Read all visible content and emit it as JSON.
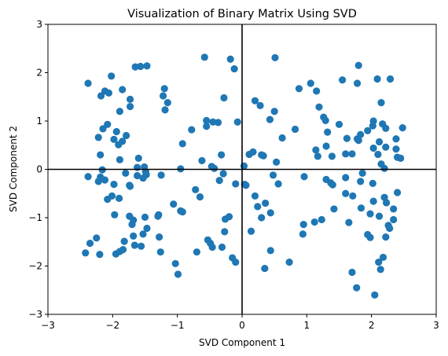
{
  "chart_data": {
    "type": "scatter",
    "title": "Visualization of Binary Matrix Using SVD",
    "xlabel": "SVD Component 1",
    "ylabel": "SVD Component 2",
    "xlim": [
      -3,
      3
    ],
    "ylim": [
      -3,
      3
    ],
    "xticks": [
      "−3",
      "−2",
      "−1",
      "0",
      "1",
      "2",
      "3"
    ],
    "yticks": [
      "−3",
      "−2",
      "−1",
      "0",
      "1",
      "2",
      "3"
    ],
    "grid": false,
    "reference_lines": [
      {
        "axis": "x",
        "value": 0
      },
      {
        "axis": "y",
        "value": 0
      }
    ],
    "colors": {
      "points": "#1f77b4",
      "reference_lines": "#000000"
    },
    "series": [
      {
        "points": [
          [
            -2.38,
            1.78
          ],
          [
            -2.02,
            1.93
          ],
          [
            -1.85,
            1.65
          ],
          [
            -1.65,
            2.12
          ],
          [
            -1.57,
            2.13
          ],
          [
            -1.47,
            2.14
          ],
          [
            -2.18,
            1.52
          ],
          [
            -2.12,
            1.62
          ],
          [
            -2.06,
            1.58
          ],
          [
            -1.73,
            1.45
          ],
          [
            -1.73,
            1.3
          ],
          [
            -1.89,
            1.2
          ],
          [
            -1.2,
            1.67
          ],
          [
            -1.22,
            1.52
          ],
          [
            -1.15,
            1.38
          ],
          [
            -1.19,
            1.23
          ],
          [
            -0.58,
            2.32
          ],
          [
            -0.18,
            2.28
          ],
          [
            -0.12,
            2.08
          ],
          [
            0.51,
            2.31
          ],
          [
            -0.55,
            1.01
          ],
          [
            -0.55,
            0.89
          ],
          [
            -0.45,
            0.98
          ],
          [
            -0.37,
            0.97
          ],
          [
            -0.28,
            1.48
          ],
          [
            -0.07,
            0.98
          ],
          [
            0.2,
            1.42
          ],
          [
            0.28,
            1.32
          ],
          [
            0.43,
            1.03
          ],
          [
            0.5,
            1.2
          ],
          [
            0.62,
            0.65
          ],
          [
            0.88,
            1.67
          ],
          [
            1.06,
            1.78
          ],
          [
            1.15,
            1.62
          ],
          [
            1.19,
            1.29
          ],
          [
            1.26,
            1.08
          ],
          [
            1.29,
            1.01
          ],
          [
            1.55,
            1.85
          ],
          [
            1.78,
            1.78
          ],
          [
            1.8,
            2.15
          ],
          [
            1.3,
            0.48
          ],
          [
            1.32,
            0.77
          ],
          [
            1.5,
            0.93
          ],
          [
            1.6,
            0.32
          ],
          [
            1.7,
            0.32
          ],
          [
            1.78,
            0.63
          ],
          [
            1.83,
            0.72
          ],
          [
            1.94,
            0.8
          ],
          [
            2.03,
            1.0
          ],
          [
            2.09,
            1.87
          ],
          [
            2.15,
            1.38
          ],
          [
            2.17,
            0.94
          ],
          [
            2.22,
            0.85
          ],
          [
            2.29,
            1.87
          ],
          [
            2.38,
            0.63
          ],
          [
            2.38,
            0.42
          ],
          [
            2.4,
            0.25
          ],
          [
            2.45,
            0.23
          ],
          [
            2.48,
            0.86
          ],
          [
            2.2,
            0.02
          ],
          [
            -2.22,
            0.66
          ],
          [
            -2.15,
            0.84
          ],
          [
            -2.08,
            0.93
          ],
          [
            -1.98,
            0.62
          ],
          [
            -1.94,
            0.78
          ],
          [
            -1.91,
            0.51
          ],
          [
            -1.85,
            0.58
          ],
          [
            -1.79,
            0.7
          ],
          [
            -1.6,
            0.23
          ],
          [
            -1.62,
            0.04
          ],
          [
            -1.51,
            0.05
          ],
          [
            -1.89,
            0.2
          ],
          [
            -2.19,
            0.3
          ],
          [
            -0.92,
            0.53
          ],
          [
            -0.78,
            0.82
          ],
          [
            -0.62,
            0.18
          ],
          [
            -0.47,
            0.06
          ],
          [
            -0.43,
            0.02
          ],
          [
            -0.32,
            0.3
          ],
          [
            0.03,
            0.07
          ],
          [
            0.11,
            0.31
          ],
          [
            0.17,
            0.36
          ],
          [
            0.3,
            0.3
          ],
          [
            0.33,
            0.28
          ],
          [
            0.53,
            0.15
          ],
          [
            0.82,
            0.83
          ],
          [
            1.14,
            0.4
          ],
          [
            1.17,
            0.27
          ],
          [
            1.39,
            0.27
          ],
          [
            1.62,
            0.64
          ],
          [
            1.8,
            0.6
          ],
          [
            2.03,
            0.44
          ],
          [
            2.1,
            0.31
          ],
          [
            2.12,
            0.57
          ],
          [
            2.02,
            0.9
          ],
          [
            2.22,
            0.46
          ],
          [
            2.15,
            0.11
          ],
          [
            -2.38,
            -0.15
          ],
          [
            -2.22,
            -0.25
          ],
          [
            -2.16,
            -0.01
          ],
          [
            -2.12,
            -0.22
          ],
          [
            -2.08,
            -0.62
          ],
          [
            -2.01,
            -0.55
          ],
          [
            -1.98,
            -0.31
          ],
          [
            -1.9,
            -0.6
          ],
          [
            -1.8,
            -0.08
          ],
          [
            -1.73,
            -0.35
          ],
          [
            -1.74,
            -0.33
          ],
          [
            -1.62,
            -0.13
          ],
          [
            -1.53,
            -0.18
          ],
          [
            -1.48,
            -0.11
          ],
          [
            -1.49,
            -0.05
          ],
          [
            -1.25,
            -0.12
          ],
          [
            -0.95,
            0.01
          ],
          [
            -0.72,
            -0.42
          ],
          [
            -0.35,
            -0.23
          ],
          [
            -0.29,
            -0.09
          ],
          [
            -0.1,
            -0.3
          ],
          [
            0.04,
            -0.31
          ],
          [
            0.06,
            -0.33
          ],
          [
            0.2,
            -0.55
          ],
          [
            0.36,
            -0.7
          ],
          [
            0.44,
            -0.9
          ],
          [
            0.48,
            -0.12
          ],
          [
            0.56,
            -0.3
          ],
          [
            0.96,
            -0.15
          ],
          [
            1.3,
            -0.21
          ],
          [
            1.37,
            -0.28
          ],
          [
            1.4,
            -0.32
          ],
          [
            1.42,
            -0.82
          ],
          [
            1.6,
            -0.17
          ],
          [
            1.71,
            -0.55
          ],
          [
            1.83,
            -0.25
          ],
          [
            1.86,
            -0.08
          ],
          [
            2.02,
            -0.29
          ],
          [
            2.03,
            -0.66
          ],
          [
            2.2,
            -0.58
          ],
          [
            2.34,
            -0.82
          ],
          [
            2.4,
            -0.48
          ],
          [
            -2.19,
            -0.16
          ],
          [
            -1.97,
            -0.94
          ],
          [
            -1.74,
            -0.97
          ],
          [
            -1.7,
            -1.14
          ],
          [
            -1.68,
            -1.05
          ],
          [
            -1.5,
            -0.99
          ],
          [
            -1.47,
            -1.22
          ],
          [
            -1.29,
            -0.94
          ],
          [
            -1.3,
            -0.97
          ],
          [
            -1.06,
            -0.72
          ],
          [
            -0.95,
            -0.86
          ],
          [
            -0.92,
            -0.88
          ],
          [
            -0.65,
            -0.57
          ],
          [
            -0.26,
            -1.03
          ],
          [
            0.24,
            -0.77
          ],
          [
            0.3,
            -1.0
          ],
          [
            -0.2,
            -0.98
          ],
          [
            0.95,
            -1.14
          ],
          [
            1.12,
            -1.09
          ],
          [
            1.23,
            -1.04
          ],
          [
            1.6,
            -0.5
          ],
          [
            1.65,
            -1.1
          ],
          [
            1.84,
            -0.8
          ],
          [
            1.98,
            -0.92
          ],
          [
            2.12,
            -0.97
          ],
          [
            2.23,
            -0.69
          ],
          [
            2.26,
            -1.16
          ],
          [
            2.28,
            -1.22
          ],
          [
            2.34,
            -1.04
          ],
          [
            2.22,
            -1.4
          ],
          [
            1.94,
            -1.35
          ],
          [
            1.98,
            -1.41
          ],
          [
            -2.42,
            -1.73
          ],
          [
            -2.35,
            -1.53
          ],
          [
            -2.25,
            -1.42
          ],
          [
            -2.2,
            -1.76
          ],
          [
            -1.95,
            -1.75
          ],
          [
            -1.89,
            -1.7
          ],
          [
            -1.84,
            -1.66
          ],
          [
            -1.82,
            -1.49
          ],
          [
            -1.68,
            -1.38
          ],
          [
            -1.66,
            -1.57
          ],
          [
            -1.56,
            -1.59
          ],
          [
            -1.53,
            -1.34
          ],
          [
            -1.28,
            -1.4
          ],
          [
            -1.26,
            -1.71
          ],
          [
            -1.03,
            -1.95
          ],
          [
            -0.99,
            -2.17
          ],
          [
            -0.7,
            -1.71
          ],
          [
            -0.53,
            -1.46
          ],
          [
            -0.49,
            -1.53
          ],
          [
            -0.46,
            -1.61
          ],
          [
            -0.31,
            -1.61
          ],
          [
            -0.27,
            -1.29
          ],
          [
            -0.15,
            -1.83
          ],
          [
            -0.1,
            -1.92
          ],
          [
            0.14,
            -1.28
          ],
          [
            0.35,
            -2.05
          ],
          [
            0.44,
            -1.68
          ],
          [
            0.73,
            -1.92
          ],
          [
            0.94,
            -1.34
          ],
          [
            1.7,
            -2.13
          ],
          [
            1.77,
            -2.45
          ],
          [
            2.05,
            -2.6
          ],
          [
            2.11,
            -1.92
          ],
          [
            2.14,
            -2.07
          ],
          [
            2.18,
            -1.82
          ]
        ]
      }
    ]
  }
}
